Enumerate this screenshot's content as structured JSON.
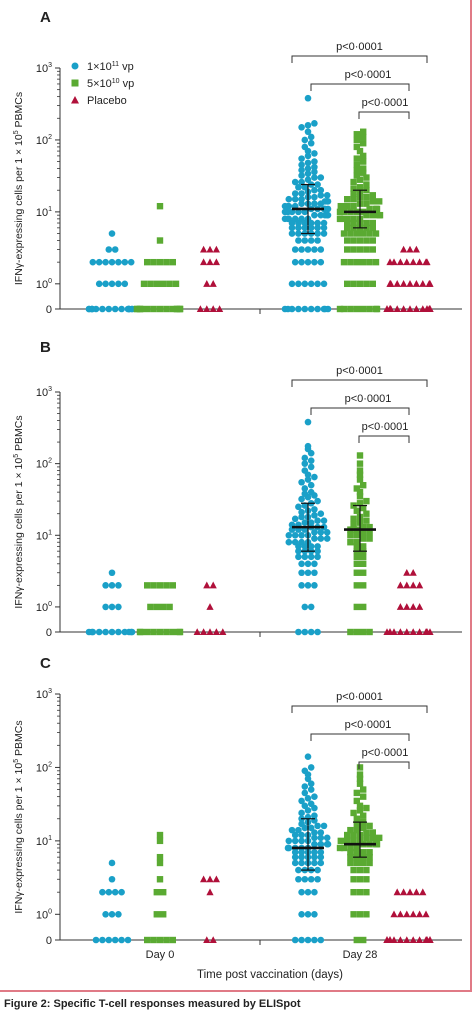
{
  "figure": {
    "caption": "Figure 2: Specific T-cell responses measured by ELISpot",
    "legend": [
      {
        "label": "1×10",
        "sup": "11",
        "suffix": " vp",
        "color": "#1aa0c8",
        "marker": "circle"
      },
      {
        "label": "5×10",
        "sup": "10",
        "suffix": " vp",
        "color": "#5aaa32",
        "marker": "square"
      },
      {
        "label": "Placebo",
        "sup": "",
        "suffix": "",
        "color": "#b0103a",
        "marker": "triangle"
      }
    ]
  },
  "chart_data": [
    {
      "panel": "A",
      "type": "scatter",
      "ylabel_main": "IFNγ-expressing cells per 1 × 10",
      "ylabel_sup": "5",
      "ylabel_end": " PBMCs",
      "yscale": "symlog",
      "yticks": [
        "0",
        "10",
        "10",
        "10",
        "10"
      ],
      "ytick_sups": [
        "",
        "0",
        "1",
        "2",
        "3"
      ],
      "ylim": [
        0,
        1000
      ],
      "xticks": [],
      "xlabel": "",
      "comparisons": [
        "p<0·0001",
        "p<0·0001",
        "p<0·0001"
      ],
      "groups": [
        {
          "day": "Day 0",
          "series": "1×10^11 vp",
          "values": [
            0,
            0,
            0,
            0,
            0,
            0,
            0,
            0,
            0,
            0,
            0,
            0,
            0,
            0,
            0,
            0,
            1,
            1,
            1,
            1,
            1,
            2,
            2,
            2,
            2,
            2,
            2,
            2,
            3,
            3,
            5
          ]
        },
        {
          "day": "Day 0",
          "series": "5×10^10 vp",
          "values": [
            0,
            0,
            0,
            0,
            0,
            0,
            0,
            0,
            0,
            0,
            0,
            0,
            0,
            0,
            0,
            1,
            1,
            1,
            1,
            1,
            1,
            2,
            2,
            2,
            2,
            2,
            4,
            12
          ]
        },
        {
          "day": "Day 0",
          "series": "Placebo",
          "values": [
            0,
            0,
            0,
            0,
            1,
            1,
            2,
            2,
            2,
            3,
            3,
            3
          ]
        },
        {
          "day": "Day 28",
          "series": "1×10^11 vp",
          "values": [
            0,
            0,
            0,
            0,
            0,
            0,
            0,
            0,
            0,
            0,
            1,
            1,
            1,
            1,
            1,
            1,
            2,
            2,
            2,
            2,
            2,
            3,
            3,
            3,
            3,
            3,
            4,
            4,
            4,
            4,
            5,
            5,
            5,
            5,
            5,
            5,
            6,
            6,
            6,
            6,
            6,
            6,
            7,
            7,
            7,
            7,
            7,
            7,
            8,
            8,
            8,
            8,
            8,
            8,
            9,
            9,
            9,
            9,
            9,
            10,
            10,
            10,
            10,
            10,
            11,
            11,
            11,
            11,
            11,
            12,
            12,
            12,
            12,
            13,
            13,
            13,
            13,
            14,
            14,
            14,
            15,
            15,
            15,
            16,
            16,
            17,
            17,
            18,
            18,
            19,
            20,
            20,
            22,
            22,
            24,
            24,
            26,
            26,
            28,
            30,
            30,
            32,
            34,
            36,
            38,
            40,
            42,
            45,
            48,
            50,
            55,
            60,
            65,
            70,
            80,
            90,
            100,
            110,
            130,
            150,
            160,
            170,
            380
          ]
        },
        {
          "day": "Day 28",
          "series": "5×10^10 vp",
          "values": [
            0,
            0,
            0,
            0,
            0,
            0,
            0,
            0,
            1,
            1,
            1,
            1,
            1,
            2,
            2,
            2,
            2,
            2,
            2,
            3,
            3,
            3,
            3,
            3,
            4,
            4,
            4,
            4,
            4,
            5,
            5,
            5,
            5,
            5,
            5,
            6,
            6,
            6,
            6,
            6,
            7,
            7,
            7,
            7,
            7,
            8,
            8,
            8,
            8,
            8,
            9,
            9,
            9,
            9,
            10,
            10,
            10,
            10,
            10,
            11,
            11,
            11,
            12,
            12,
            12,
            13,
            13,
            14,
            14,
            15,
            15,
            16,
            16,
            17,
            18,
            19,
            20,
            21,
            22,
            24,
            26,
            28,
            30,
            32,
            35,
            38,
            40,
            45,
            50,
            55,
            60,
            70,
            80,
            90,
            100,
            110,
            120,
            130
          ]
        },
        {
          "day": "Day 28",
          "series": "Placebo",
          "values": [
            0,
            0,
            0,
            0,
            0,
            0,
            0,
            0,
            0,
            0,
            0,
            0,
            0,
            0,
            0,
            0,
            0,
            1,
            1,
            1,
            1,
            1,
            1,
            1,
            1,
            1,
            2,
            2,
            2,
            2,
            2,
            2,
            2,
            2,
            3,
            3,
            3
          ]
        }
      ],
      "medians": [
        null,
        null,
        null,
        11,
        10,
        null
      ],
      "iqr": [
        null,
        null,
        null,
        [
          5,
          24
        ],
        [
          6,
          20
        ],
        null
      ]
    },
    {
      "panel": "B",
      "type": "scatter",
      "ylabel_main": "IFNγ-expressing cells per 1 × 10",
      "ylabel_sup": "5",
      "ylabel_end": " PBMCs",
      "yscale": "symlog",
      "yticks": [
        "0",
        "10",
        "10",
        "10",
        "10"
      ],
      "ytick_sups": [
        "",
        "0",
        "1",
        "2",
        "3"
      ],
      "ylim": [
        0,
        1000
      ],
      "xticks": [],
      "xlabel": "",
      "comparisons": [
        "p<0·0001",
        "p<0·0001",
        "p<0·0001"
      ],
      "groups": [
        {
          "day": "Day 0",
          "series": "1×10^11 vp",
          "values": [
            0,
            0,
            0,
            0,
            0,
            0,
            0,
            0,
            0,
            0,
            0,
            1,
            1,
            1,
            2,
            2,
            2,
            3
          ]
        },
        {
          "day": "Day 0",
          "series": "5×10^10 vp",
          "values": [
            0,
            0,
            0,
            0,
            0,
            0,
            0,
            0,
            0,
            1,
            1,
            1,
            1,
            2,
            2,
            2,
            2,
            2
          ]
        },
        {
          "day": "Day 0",
          "series": "Placebo",
          "values": [
            0,
            0,
            0,
            0,
            0,
            1,
            2,
            2
          ]
        },
        {
          "day": "Day 28",
          "series": "1×10^11 vp",
          "values": [
            0,
            0,
            0,
            0,
            1,
            1,
            2,
            2,
            2,
            3,
            3,
            3,
            4,
            4,
            4,
            5,
            5,
            5,
            5,
            6,
            6,
            6,
            6,
            7,
            7,
            7,
            7,
            8,
            8,
            8,
            8,
            9,
            9,
            9,
            10,
            10,
            10,
            10,
            11,
            11,
            11,
            12,
            12,
            12,
            13,
            13,
            13,
            14,
            14,
            15,
            15,
            16,
            16,
            17,
            18,
            18,
            19,
            20,
            21,
            22,
            23,
            25,
            26,
            28,
            30,
            32,
            34,
            36,
            38,
            40,
            45,
            50,
            55,
            60,
            65,
            70,
            80,
            90,
            100,
            110,
            120,
            140,
            160,
            175,
            380
          ]
        },
        {
          "day": "Day 28",
          "series": "5×10^10 vp",
          "values": [
            0,
            0,
            0,
            0,
            1,
            1,
            2,
            2,
            3,
            3,
            4,
            4,
            5,
            5,
            6,
            6,
            7,
            7,
            8,
            8,
            9,
            9,
            10,
            10,
            11,
            11,
            12,
            12,
            13,
            13,
            14,
            15,
            16,
            17,
            18,
            20,
            22,
            24,
            26,
            28,
            30,
            35,
            40,
            45,
            50,
            60,
            70,
            80,
            100,
            130
          ]
        },
        {
          "day": "Day 28",
          "series": "Placebo",
          "values": [
            0,
            0,
            0,
            0,
            0,
            0,
            0,
            0,
            0,
            0,
            0,
            0,
            1,
            1,
            1,
            1,
            2,
            2,
            2,
            2,
            3,
            3
          ]
        }
      ],
      "medians": [
        null,
        null,
        null,
        13,
        12,
        null
      ],
      "iqr": [
        null,
        null,
        null,
        [
          6,
          28
        ],
        [
          6,
          26
        ],
        null
      ]
    },
    {
      "panel": "C",
      "type": "scatter",
      "ylabel_main": "IFNγ-expressing cells per 1 × 10",
      "ylabel_sup": "5",
      "ylabel_end": " PBMCs",
      "yscale": "symlog",
      "yticks": [
        "0",
        "10",
        "10",
        "10",
        "10"
      ],
      "ytick_sups": [
        "",
        "0",
        "1",
        "2",
        "3"
      ],
      "ylim": [
        0,
        1000
      ],
      "xticks": [
        "Day 0",
        "Day 28"
      ],
      "xlabel": "Time post vaccination (days)",
      "comparisons": [
        "p<0·0001",
        "p<0·0001",
        "p<0·0001"
      ],
      "groups": [
        {
          "day": "Day 0",
          "series": "1×10^11 vp",
          "values": [
            0,
            0,
            0,
            0,
            0,
            0,
            1,
            1,
            1,
            2,
            2,
            2,
            2,
            3,
            5
          ]
        },
        {
          "day": "Day 0",
          "series": "5×10^10 vp",
          "values": [
            0,
            0,
            0,
            0,
            0,
            1,
            1,
            2,
            2,
            3,
            5,
            6,
            10,
            12
          ]
        },
        {
          "day": "Day 0",
          "series": "Placebo",
          "values": [
            0,
            0,
            2,
            3,
            3,
            3
          ]
        },
        {
          "day": "Day 28",
          "series": "1×10^11 vp",
          "values": [
            0,
            0,
            0,
            0,
            0,
            1,
            1,
            1,
            2,
            2,
            2,
            3,
            3,
            3,
            3,
            4,
            4,
            4,
            4,
            5,
            5,
            5,
            5,
            5,
            6,
            6,
            6,
            6,
            6,
            7,
            7,
            7,
            7,
            7,
            8,
            8,
            8,
            8,
            8,
            9,
            9,
            9,
            9,
            10,
            10,
            10,
            10,
            11,
            11,
            11,
            12,
            12,
            12,
            13,
            13,
            14,
            14,
            15,
            15,
            16,
            16,
            17,
            18,
            19,
            20,
            21,
            22,
            24,
            26,
            28,
            30,
            32,
            35,
            38,
            40,
            45,
            50,
            55,
            60,
            70,
            80,
            90,
            100,
            140
          ]
        },
        {
          "day": "Day 28",
          "series": "5×10^10 vp",
          "values": [
            0,
            0,
            1,
            1,
            1,
            2,
            2,
            2,
            3,
            3,
            3,
            4,
            4,
            4,
            5,
            5,
            5,
            5,
            6,
            6,
            6,
            6,
            7,
            7,
            7,
            7,
            8,
            8,
            8,
            8,
            9,
            9,
            9,
            9,
            10,
            10,
            10,
            10,
            11,
            11,
            11,
            12,
            12,
            12,
            13,
            13,
            14,
            14,
            15,
            16,
            17,
            18,
            20,
            22,
            24,
            26,
            28,
            30,
            35,
            40,
            45,
            50,
            60,
            70,
            80,
            100
          ]
        },
        {
          "day": "Day 28",
          "series": "Placebo",
          "values": [
            0,
            0,
            0,
            0,
            0,
            0,
            0,
            0,
            0,
            0,
            0,
            0,
            0,
            0,
            0,
            0,
            0,
            0,
            1,
            1,
            1,
            1,
            1,
            1,
            2,
            2,
            2,
            2,
            2
          ]
        }
      ],
      "medians": [
        null,
        null,
        null,
        8,
        9,
        null
      ],
      "iqr": [
        null,
        null,
        null,
        [
          4,
          20
        ],
        [
          6,
          18
        ],
        null
      ]
    }
  ]
}
